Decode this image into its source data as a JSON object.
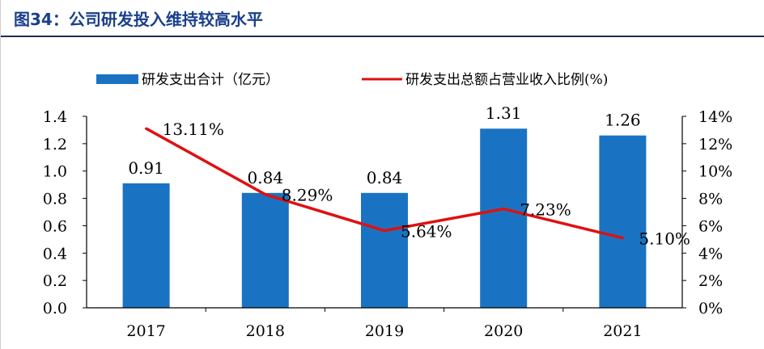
{
  "title": "图34：公司研发投入维持较高水平",
  "colors": {
    "bar": "#1a73c2",
    "line": "#e01010",
    "title": "#1a3f8c"
  },
  "chart_data": {
    "type": "bar",
    "categories": [
      "2017",
      "2018",
      "2019",
      "2020",
      "2021"
    ],
    "series": [
      {
        "name": "研发支出合计（亿元）",
        "type": "bar",
        "axis": "left",
        "values": [
          0.91,
          0.84,
          0.84,
          1.31,
          1.26
        ],
        "labels": [
          "0.91",
          "0.84",
          "0.84",
          "1.31",
          "1.26"
        ]
      },
      {
        "name": "研发支出总额占营业收入比例(%)",
        "type": "line",
        "axis": "right",
        "values": [
          13.11,
          8.29,
          5.64,
          7.23,
          5.1
        ],
        "labels": [
          "13.11%",
          "8.29%",
          "5.64%",
          "7.23%",
          "5.10%"
        ]
      }
    ],
    "y_left": {
      "min": 0,
      "max": 1.4,
      "ticks": [
        "0.0",
        "0.2",
        "0.4",
        "0.6",
        "0.8",
        "1.0",
        "1.2",
        "1.4"
      ]
    },
    "y_right": {
      "min": 0,
      "max": 14,
      "ticks": [
        "0%",
        "2%",
        "4%",
        "6%",
        "8%",
        "10%",
        "12%",
        "14%"
      ]
    },
    "legend": "top",
    "grid": false
  }
}
